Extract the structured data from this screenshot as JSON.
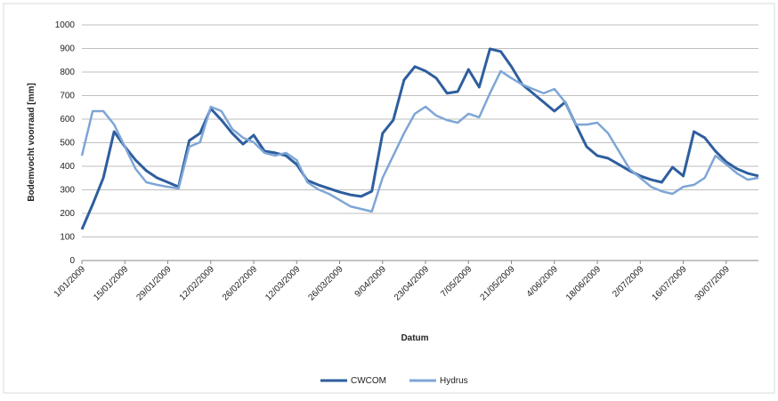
{
  "chart_data": {
    "type": "line",
    "y_label": "Bodemvocht voorraad [mm]",
    "x_label": "Datum",
    "categories": [
      "1/01/2009",
      null,
      null,
      null,
      "15/01/2009",
      null,
      null,
      null,
      "29/01/2009",
      null,
      null,
      null,
      "12/02/2009",
      null,
      null,
      null,
      "26/02/2009",
      null,
      null,
      null,
      "12/03/2009",
      null,
      null,
      null,
      "26/03/2009",
      null,
      null,
      null,
      "9/04/2009",
      null,
      null,
      null,
      "23/04/2009",
      null,
      null,
      null,
      "7/05/2009",
      null,
      null,
      null,
      "21/05/2009",
      null,
      null,
      null,
      "4/06/2009",
      null,
      null,
      null,
      "18/06/2009",
      null,
      null,
      null,
      "2/07/2009",
      null,
      null,
      null,
      "16/07/2009",
      null,
      null,
      null,
      "30/07/2009",
      null,
      null,
      null
    ],
    "series": [
      {
        "name": "CWCOM",
        "color": "#2e5e9e",
        "values": [
          132,
          238,
          351,
          547,
          483,
          426,
          381,
          351,
          332,
          313,
          509,
          540,
          645,
          596,
          540,
          494,
          532,
          464,
          457,
          445,
          408,
          340,
          321,
          306,
          291,
          279,
          272,
          294,
          540,
          596,
          766,
          823,
          804,
          774,
          710,
          717,
          811,
          736,
          898,
          887,
          823,
          747,
          710,
          672,
          634,
          672,
          577,
          483,
          445,
          434,
          408,
          381,
          359,
          343,
          332,
          396,
          359,
          547,
          521,
          464,
          419,
          389,
          370,
          359
        ]
      },
      {
        "name": "Hydrus",
        "color": "#7ea6d6",
        "values": [
          445,
          634,
          634,
          577,
          483,
          389,
          332,
          321,
          313,
          306,
          483,
          502,
          653,
          634,
          558,
          521,
          502,
          457,
          445,
          457,
          426,
          332,
          302,
          283,
          257,
          230,
          219,
          208,
          351,
          445,
          540,
          623,
          653,
          615,
          596,
          585,
          623,
          608,
          710,
          804,
          774,
          747,
          728,
          710,
          728,
          672,
          577,
          577,
          585,
          540,
          464,
          389,
          351,
          313,
          294,
          283,
          313,
          321,
          351,
          445,
          408,
          370,
          343,
          351
        ]
      }
    ],
    "ylim": [
      0,
      1000
    ],
    "yticks": [
      0,
      100,
      200,
      300,
      400,
      500,
      600,
      700,
      800,
      900,
      1000
    ],
    "grid": true,
    "legend": "bottom"
  }
}
